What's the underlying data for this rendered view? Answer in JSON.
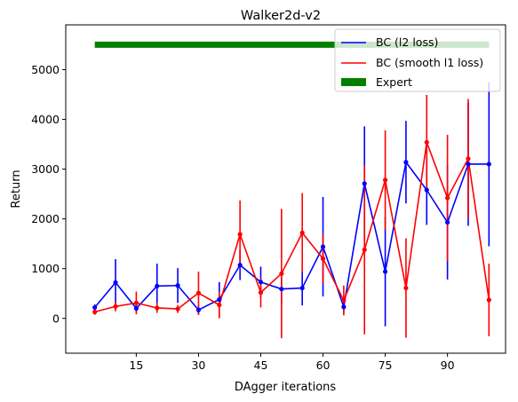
{
  "chart_data": {
    "type": "line",
    "title": "Walker2d-v2",
    "xlabel": "DAgger iterations",
    "ylabel": "Return",
    "xlim": [
      -2,
      104
    ],
    "ylim": [
      -700,
      5900
    ],
    "xticks": [
      15,
      30,
      45,
      60,
      75,
      90
    ],
    "yticks": [
      0,
      1000,
      2000,
      3000,
      4000,
      5000
    ],
    "legend_position": "top-right",
    "grid": false,
    "expert": {
      "name": "Expert",
      "value": 5500,
      "x_range": [
        5,
        100
      ],
      "color": "#008000"
    },
    "series": [
      {
        "name": "BC (l2 loss)",
        "color": "#0000ff",
        "x": [
          5,
          10,
          15,
          20,
          25,
          30,
          35,
          40,
          45,
          50,
          55,
          60,
          65,
          70,
          75,
          80,
          85,
          90,
          95,
          100
        ],
        "y": [
          220,
          720,
          200,
          650,
          660,
          170,
          380,
          1070,
          730,
          590,
          610,
          1440,
          230,
          2710,
          940,
          3140,
          2580,
          1930,
          3100,
          3100
        ],
        "err": [
          60,
          470,
          80,
          450,
          350,
          100,
          350,
          300,
          310,
          300,
          350,
          1000,
          120,
          1150,
          1100,
          830,
          700,
          1150,
          1240,
          1650
        ]
      },
      {
        "name": "BC (smooth l1 loss)",
        "color": "#ff0000",
        "x": [
          5,
          10,
          15,
          20,
          25,
          30,
          35,
          40,
          45,
          50,
          55,
          60,
          65,
          70,
          75,
          80,
          85,
          90,
          95,
          100
        ],
        "y": [
          130,
          240,
          310,
          210,
          190,
          510,
          270,
          1690,
          520,
          900,
          1720,
          1200,
          360,
          1380,
          2780,
          610,
          3540,
          2420,
          3210,
          370
        ],
        "err": [
          60,
          100,
          230,
          100,
          80,
          430,
          270,
          680,
          300,
          1300,
          800,
          500,
          300,
          1700,
          1000,
          1000,
          950,
          1270,
          1200,
          730
        ]
      }
    ]
  }
}
